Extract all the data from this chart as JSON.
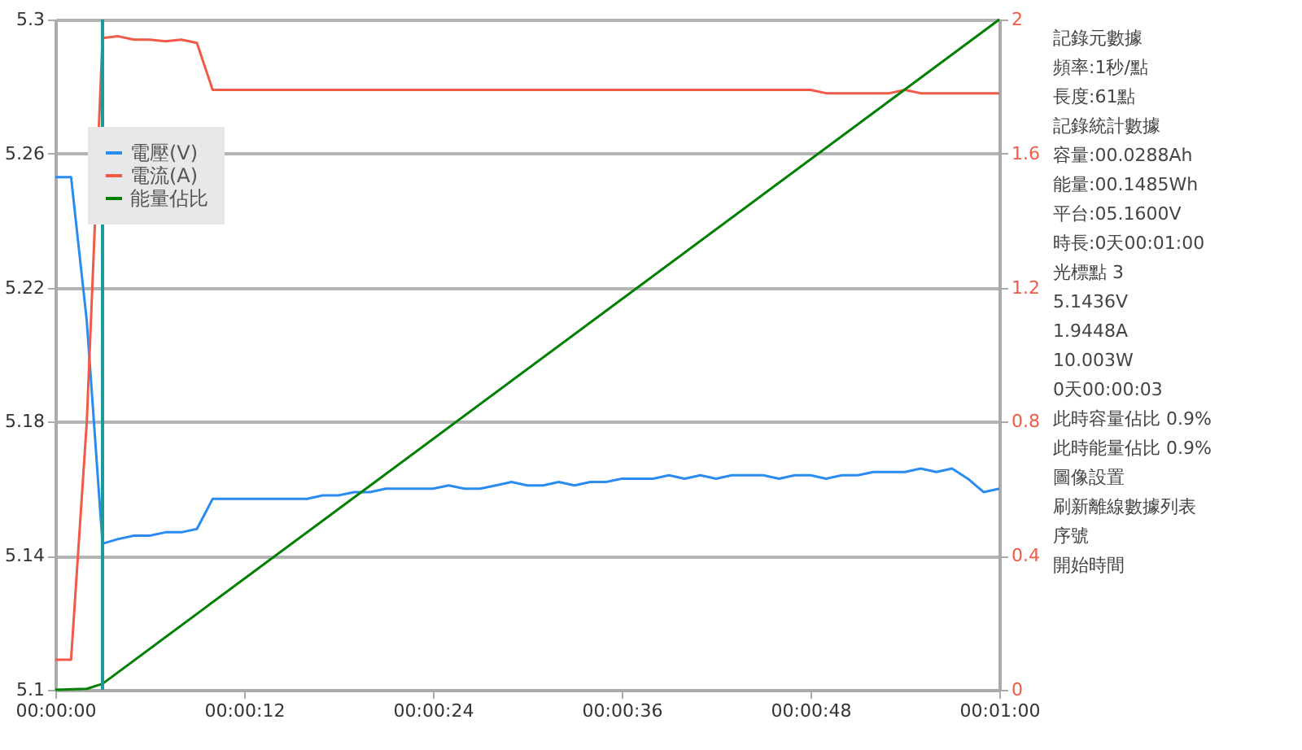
{
  "chart_data": {
    "type": "line",
    "x": [
      0,
      1,
      2,
      3,
      4,
      5,
      6,
      7,
      8,
      9,
      10,
      11,
      12,
      13,
      14,
      15,
      16,
      17,
      18,
      19,
      20,
      21,
      22,
      23,
      24,
      25,
      26,
      27,
      28,
      29,
      30,
      31,
      32,
      33,
      34,
      35,
      36,
      37,
      38,
      39,
      40,
      41,
      42,
      43,
      44,
      45,
      46,
      47,
      48,
      49,
      50,
      51,
      52,
      53,
      54,
      55,
      56,
      57,
      58,
      59,
      60
    ],
    "series": [
      {
        "name": "電壓(V)",
        "color": "#2a8cf0",
        "values": [
          5.253,
          5.253,
          5.21,
          5.1436,
          5.145,
          5.146,
          5.146,
          5.147,
          5.147,
          5.148,
          5.157,
          5.157,
          5.157,
          5.157,
          5.157,
          5.157,
          5.157,
          5.158,
          5.158,
          5.159,
          5.159,
          5.16,
          5.16,
          5.16,
          5.16,
          5.161,
          5.16,
          5.16,
          5.161,
          5.162,
          5.161,
          5.161,
          5.162,
          5.161,
          5.162,
          5.162,
          5.163,
          5.163,
          5.163,
          5.164,
          5.163,
          5.164,
          5.163,
          5.164,
          5.164,
          5.164,
          5.163,
          5.164,
          5.164,
          5.163,
          5.164,
          5.164,
          5.165,
          5.165,
          5.165,
          5.166,
          5.165,
          5.166,
          5.163,
          5.159,
          5.16
        ]
      },
      {
        "name": "電流(A)",
        "color": "#f05a46",
        "axis": "y2",
        "values": [
          0.09,
          0.09,
          0.8,
          1.945,
          1.95,
          1.94,
          1.94,
          1.935,
          1.94,
          1.93,
          1.79,
          1.79,
          1.79,
          1.79,
          1.79,
          1.79,
          1.79,
          1.79,
          1.79,
          1.79,
          1.79,
          1.79,
          1.79,
          1.79,
          1.79,
          1.79,
          1.79,
          1.79,
          1.79,
          1.79,
          1.79,
          1.79,
          1.79,
          1.79,
          1.79,
          1.79,
          1.79,
          1.79,
          1.79,
          1.79,
          1.79,
          1.79,
          1.79,
          1.79,
          1.79,
          1.79,
          1.79,
          1.79,
          1.79,
          1.78,
          1.78,
          1.78,
          1.78,
          1.78,
          1.79,
          1.78,
          1.78,
          1.78,
          1.78,
          1.78,
          1.78
        ]
      },
      {
        "name": "能量佔比",
        "color": "#008000",
        "axis": "y2",
        "x": [
          0,
          2,
          3,
          60
        ],
        "values": [
          0,
          0.003,
          0.018,
          2
        ]
      }
    ],
    "xlim": [
      0,
      60
    ],
    "xticks": [
      {
        "value": 0,
        "label": "00:00:00"
      },
      {
        "value": 12,
        "label": "00:00:12"
      },
      {
        "value": 24,
        "label": "00:00:24"
      },
      {
        "value": 36,
        "label": "00:00:36"
      },
      {
        "value": 48,
        "label": "00:00:48"
      },
      {
        "value": 60,
        "label": "00:01:00"
      }
    ],
    "ylim": [
      5.1,
      5.3
    ],
    "yticks": [
      5.1,
      5.14,
      5.18,
      5.22,
      5.26,
      5.3
    ],
    "y2lim": [
      0,
      2
    ],
    "y2ticks": [
      0,
      0.4,
      0.8,
      1.2,
      1.6,
      2
    ],
    "ref_lines": [
      {
        "axis": "x",
        "value": 3,
        "color": "#1a9a9a"
      }
    ],
    "grid": "y",
    "legend": "top left",
    "annotations": [
      "記錄元數據",
      "頻率:1秒/點",
      "長度:61點",
      "記錄統計數據",
      "容量:00.0288Ah",
      "能量:00.1485Wh",
      "平台:05.1600V",
      "時長:0天00:01:00",
      "光標點 3",
      "5.1436V",
      "1.9448A",
      "10.003W",
      "0天00:00:03",
      "此時容量佔比 0.9%",
      "此時能量佔比 0.9%",
      "圖像設置",
      "刷新離線數據列表",
      "序號",
      "開始時間"
    ]
  }
}
